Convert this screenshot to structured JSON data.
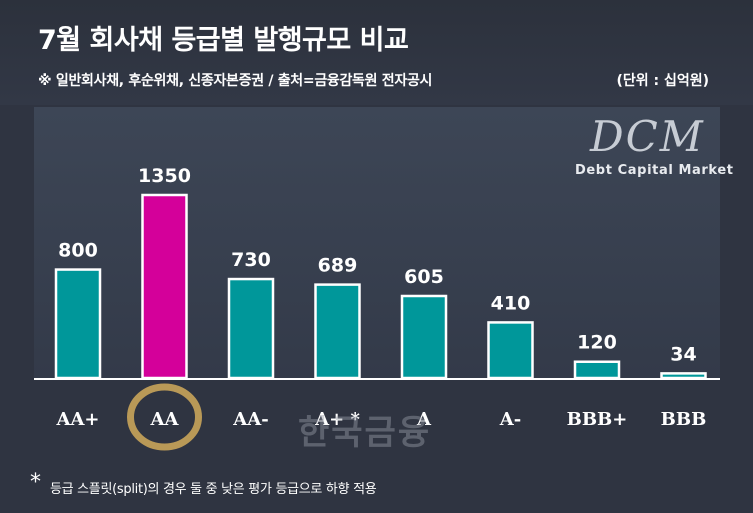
{
  "title": "7월 회사채 등급별 발행규모 비교",
  "subtitle": "※ 일반회사채, 후순위채, 신종자본증권 / 출처=금융감독원 전자공시",
  "unit": "(단위 : 십억원)",
  "brand": {
    "logo": "DCM",
    "tagline": "Debt Capital Market"
  },
  "watermark": "한국금융",
  "footnote": {
    "mark": "*",
    "text": "등급 스플릿(split)의 경우 둘 중  낮은 평가 등급으로 하향 적용"
  },
  "colors": {
    "bar": "#00979a",
    "highlight": "#d4009a",
    "circle": "#c9a45a"
  },
  "chart_data": {
    "type": "bar",
    "categories": [
      "AA+",
      "AA",
      "AA-",
      "A+ *",
      "A",
      "A-",
      "BBB+",
      "BBB"
    ],
    "values": [
      800,
      1350,
      730,
      689,
      605,
      410,
      120,
      34
    ],
    "data_labels": [
      "800",
      "1350",
      "730",
      "689",
      "605",
      "410",
      "120",
      "34"
    ],
    "highlight_category": "AA",
    "ylim": [
      0,
      1350
    ]
  }
}
